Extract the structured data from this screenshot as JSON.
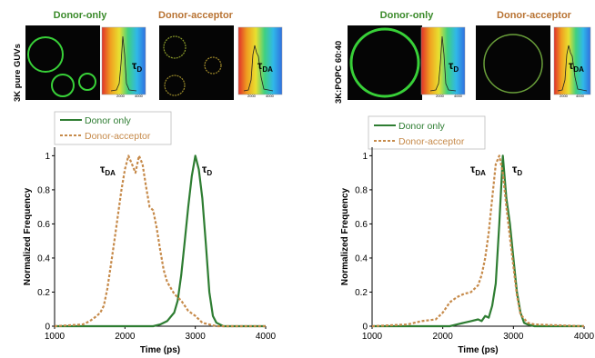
{
  "colors": {
    "donor_only": "#2e7d32",
    "donor_acceptor": "#c68a4a",
    "donor_only_header": "#3a8a2a",
    "donor_acceptor_header": "#b87333",
    "image_bg": "#050505",
    "vesicle": "#38d038"
  },
  "panels": [
    {
      "id": "left",
      "side_label": "3K pure GUVs",
      "images": {
        "header_donor_only": "Donor-only",
        "header_donor_acceptor": "Donor-acceptor",
        "tau_d_label": "τ",
        "tau_d_sub": "D",
        "tau_da_label": "τ",
        "tau_da_sub": "DA",
        "inset_ticks": [
          "2000",
          "4000"
        ]
      },
      "legend": [
        "Donor only",
        "Donor-acceptor"
      ],
      "peak_labels": {
        "tau": "τ",
        "d_sub": "D",
        "da_sub": "DA"
      }
    },
    {
      "id": "right",
      "side_label": "3K:POPC 60:40",
      "images": {
        "header_donor_only": "Donor-only",
        "header_donor_acceptor": "Donor-acceptor",
        "tau_d_label": "τ",
        "tau_d_sub": "D",
        "tau_da_label": "τ",
        "tau_da_sub": "DA",
        "inset_ticks": [
          "2000",
          "4000"
        ]
      },
      "legend": [
        "Donor only",
        "Donor-acceptor"
      ],
      "peak_labels": {
        "tau": "τ",
        "d_sub": "D",
        "da_sub": "DA"
      }
    }
  ],
  "chart_data": [
    {
      "type": "line",
      "title": "",
      "xlabel": "Time (ps)",
      "ylabel": "Normalized Frequency",
      "xlim": [
        1000,
        4000
      ],
      "ylim": [
        0,
        1.05
      ],
      "xticks": [
        1000,
        2000,
        3000,
        4000
      ],
      "yticks": [
        0,
        0.2,
        0.4,
        0.6,
        0.8,
        1
      ],
      "ytick_labels": [
        "0",
        "0.2",
        "0.4",
        "0.6",
        "0.8",
        "1"
      ],
      "grid": false,
      "legend_position": "top-left",
      "series": [
        {
          "name": "Donor only",
          "style": "solid",
          "x": [
            1000,
            2400,
            2500,
            2600,
            2700,
            2750,
            2800,
            2850,
            2900,
            2950,
            3000,
            3050,
            3100,
            3150,
            3200,
            3250,
            3300,
            3400,
            4000
          ],
          "y": [
            0,
            0,
            0.01,
            0.03,
            0.08,
            0.15,
            0.3,
            0.5,
            0.7,
            0.88,
            1.0,
            0.92,
            0.75,
            0.48,
            0.2,
            0.06,
            0.02,
            0,
            0
          ]
        },
        {
          "name": "Donor-acceptor",
          "style": "dashed",
          "x": [
            1000,
            1400,
            1500,
            1600,
            1650,
            1700,
            1750,
            1800,
            1850,
            1900,
            1950,
            2000,
            2050,
            2100,
            2150,
            2200,
            2250,
            2300,
            2350,
            2400,
            2450,
            2500,
            2550,
            2600,
            2700,
            2800,
            2900,
            3000,
            3100,
            3200,
            3300,
            4000
          ],
          "y": [
            0,
            0.01,
            0.03,
            0.06,
            0.08,
            0.12,
            0.22,
            0.36,
            0.5,
            0.65,
            0.8,
            0.92,
            1.0,
            0.95,
            0.9,
            1.0,
            0.95,
            0.82,
            0.7,
            0.68,
            0.58,
            0.45,
            0.33,
            0.26,
            0.19,
            0.15,
            0.09,
            0.06,
            0.02,
            0.01,
            0,
            0
          ]
        }
      ]
    },
    {
      "type": "line",
      "title": "",
      "xlabel": "Time (ps)",
      "ylabel": "Normalized Frequency",
      "xlim": [
        1000,
        4000
      ],
      "ylim": [
        0,
        1.05
      ],
      "xticks": [
        1000,
        2000,
        3000,
        4000
      ],
      "yticks": [
        0,
        0.2,
        0.4,
        0.6,
        0.8,
        1
      ],
      "ytick_labels": [
        "0",
        "0.2",
        "0.4",
        "0.6",
        "0.8",
        "1"
      ],
      "grid": false,
      "legend_position": "top-left",
      "series": [
        {
          "name": "Donor only",
          "style": "solid",
          "x": [
            1000,
            2100,
            2200,
            2300,
            2400,
            2500,
            2550,
            2600,
            2650,
            2700,
            2750,
            2800,
            2850,
            2900,
            2950,
            3000,
            3050,
            3100,
            3150,
            3200,
            3300,
            4000
          ],
          "y": [
            0,
            0,
            0.01,
            0.02,
            0.03,
            0.04,
            0.03,
            0.06,
            0.05,
            0.12,
            0.25,
            0.6,
            1.0,
            0.75,
            0.6,
            0.4,
            0.2,
            0.08,
            0.02,
            0.01,
            0,
            0
          ]
        },
        {
          "name": "Donor-acceptor",
          "style": "dashed",
          "x": [
            1000,
            1500,
            1700,
            1900,
            2000,
            2100,
            2200,
            2300,
            2400,
            2500,
            2550,
            2600,
            2650,
            2700,
            2750,
            2800,
            2850,
            2900,
            2950,
            3000,
            3050,
            3100,
            3200,
            3300,
            4000
          ],
          "y": [
            0,
            0.01,
            0.03,
            0.04,
            0.08,
            0.14,
            0.17,
            0.19,
            0.2,
            0.24,
            0.3,
            0.4,
            0.55,
            0.75,
            0.95,
            1.0,
            0.9,
            0.7,
            0.52,
            0.35,
            0.18,
            0.07,
            0.02,
            0.01,
            0
          ]
        }
      ]
    }
  ]
}
